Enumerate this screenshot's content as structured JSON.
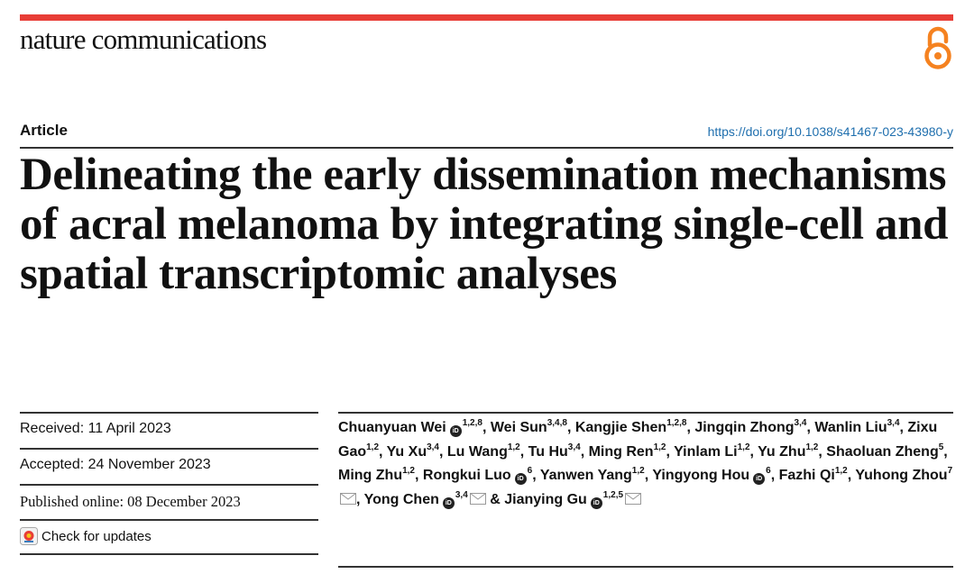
{
  "header": {
    "journal": "nature communications",
    "open_access_icon": "open-access-icon",
    "accent_color": "#e83d36"
  },
  "article": {
    "section": "Article",
    "doi": "https://doi.org/10.1038/s41467-023-43980-y",
    "title": "Delineating the early dissemination mechanisms of acral melanoma by integrating single-cell and spatial transcriptomic analyses"
  },
  "history": {
    "received": "Received: 11 April 2023",
    "accepted": "Accepted: 24 November 2023",
    "published": "Published online: 08 December 2023",
    "check_updates": "Check for updates"
  },
  "authors": [
    {
      "name": "Chuanyuan Wei",
      "aff": "1,2,8",
      "orcid": true,
      "mail": false,
      "sep": ", "
    },
    {
      "name": "Wei Sun",
      "aff": "3,4,8",
      "orcid": false,
      "mail": false,
      "sep": ", "
    },
    {
      "name": "Kangjie Shen",
      "aff": "1,2,8",
      "orcid": false,
      "mail": false,
      "sep": ", "
    },
    {
      "name": "Jingqin Zhong",
      "aff": "3,4",
      "orcid": false,
      "mail": false,
      "sep": ", "
    },
    {
      "name": "Wanlin Liu",
      "aff": "3,4",
      "orcid": false,
      "mail": false,
      "sep": ", "
    },
    {
      "name": "Zixu Gao",
      "aff": "1,2",
      "orcid": false,
      "mail": false,
      "sep": ", "
    },
    {
      "name": "Yu Xu",
      "aff": "3,4",
      "orcid": false,
      "mail": false,
      "sep": ", "
    },
    {
      "name": "Lu Wang",
      "aff": "1,2",
      "orcid": false,
      "mail": false,
      "sep": ", "
    },
    {
      "name": "Tu Hu",
      "aff": "3,4",
      "orcid": false,
      "mail": false,
      "sep": ", "
    },
    {
      "name": "Ming Ren",
      "aff": "1,2",
      "orcid": false,
      "mail": false,
      "sep": ", "
    },
    {
      "name": "Yinlam Li",
      "aff": "1,2",
      "orcid": false,
      "mail": false,
      "sep": ", "
    },
    {
      "name": "Yu Zhu",
      "aff": "1,2",
      "orcid": false,
      "mail": false,
      "sep": ", "
    },
    {
      "name": "Shaoluan Zheng",
      "aff": "5",
      "orcid": false,
      "mail": false,
      "sep": ", "
    },
    {
      "name": "Ming Zhu",
      "aff": "1,2",
      "orcid": false,
      "mail": false,
      "sep": ", "
    },
    {
      "name": "Rongkui Luo",
      "aff": "6",
      "orcid": true,
      "mail": false,
      "sep": ", "
    },
    {
      "name": "Yanwen Yang",
      "aff": "1,2",
      "orcid": false,
      "mail": false,
      "sep": ", "
    },
    {
      "name": "Yingyong Hou",
      "aff": "6",
      "orcid": true,
      "mail": false,
      "sep": ", "
    },
    {
      "name": "Fazhi Qi",
      "aff": "1,2",
      "orcid": false,
      "mail": false,
      "sep": ", "
    },
    {
      "name": "Yuhong Zhou",
      "aff": "7",
      "orcid": false,
      "mail": true,
      "sep": ", "
    },
    {
      "name": "Yong Chen",
      "aff": "3,4",
      "orcid": true,
      "mail": true,
      "sep": " & "
    },
    {
      "name": "Jianying Gu",
      "aff": "1,2,5",
      "orcid": true,
      "mail": true,
      "sep": ""
    }
  ]
}
